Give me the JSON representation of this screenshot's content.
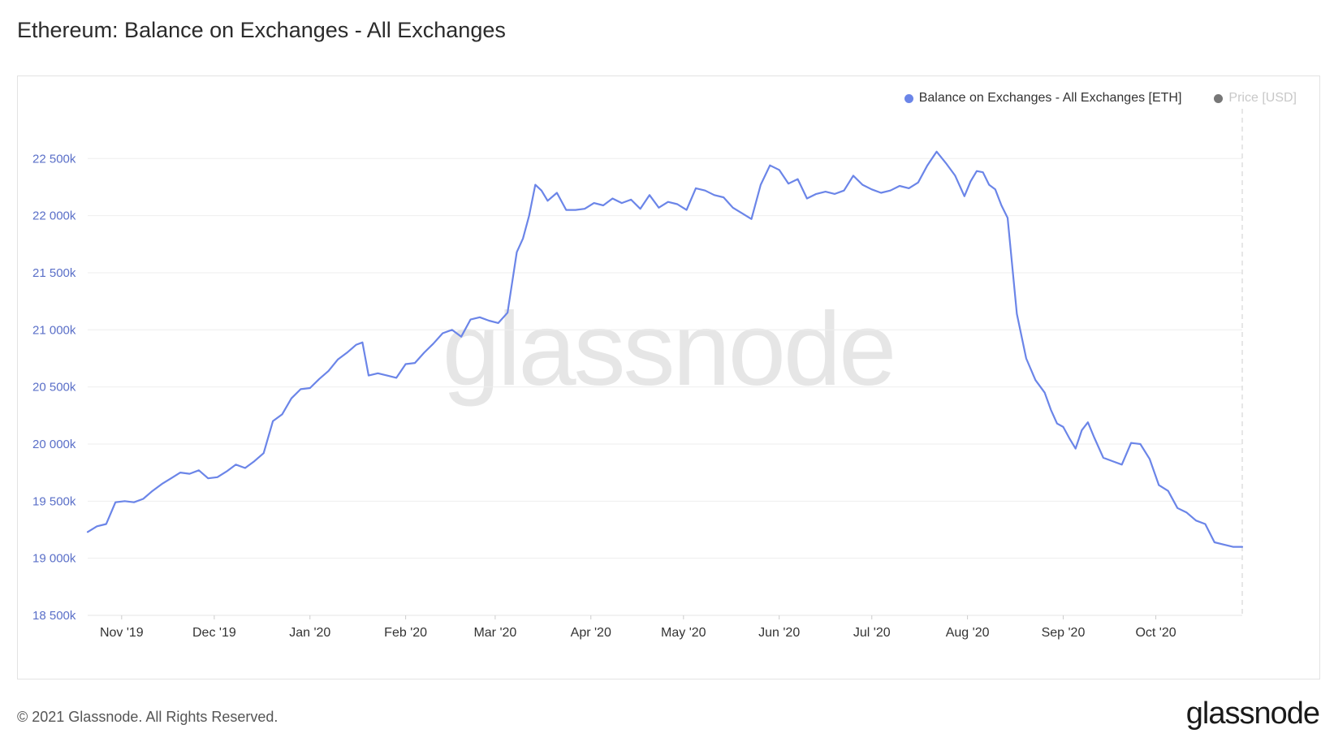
{
  "header": {
    "title": "Ethereum: Balance on Exchanges - All Exchanges"
  },
  "footer": {
    "copyright": "© 2021 Glassnode. All Rights Reserved.",
    "brand": "glassnode"
  },
  "watermark": "glassnode",
  "colors": {
    "series_line": "#6b85e8",
    "price_dot": "#777777",
    "price_label": "#c8c8c8",
    "axis_label": "#5a6fc8",
    "grid": "#eeeeee",
    "watermark": "#e6e6e6"
  },
  "chart_data": {
    "type": "line",
    "legend_placement": "top-right",
    "grid": true,
    "series": [
      {
        "name": "Balance on Exchanges - All Exchanges [ETH]",
        "x": [
          "2019-10-21",
          "2019-10-24",
          "2019-10-27",
          "2019-10-30",
          "2019-11-02",
          "2019-11-05",
          "2019-11-08",
          "2019-11-11",
          "2019-11-14",
          "2019-11-17",
          "2019-11-20",
          "2019-11-23",
          "2019-11-26",
          "2019-11-29",
          "2019-12-02",
          "2019-12-05",
          "2019-12-08",
          "2019-12-11",
          "2019-12-14",
          "2019-12-17",
          "2019-12-20",
          "2019-12-23",
          "2019-12-26",
          "2019-12-29",
          "2020-01-01",
          "2020-01-04",
          "2020-01-07",
          "2020-01-10",
          "2020-01-13",
          "2020-01-16",
          "2020-01-18",
          "2020-01-20",
          "2020-01-23",
          "2020-01-26",
          "2020-01-29",
          "2020-02-01",
          "2020-02-04",
          "2020-02-07",
          "2020-02-10",
          "2020-02-13",
          "2020-02-16",
          "2020-02-19",
          "2020-02-22",
          "2020-02-25",
          "2020-02-28",
          "2020-03-02",
          "2020-03-05",
          "2020-03-08",
          "2020-03-10",
          "2020-03-12",
          "2020-03-14",
          "2020-03-16",
          "2020-03-18",
          "2020-03-21",
          "2020-03-24",
          "2020-03-27",
          "2020-03-30",
          "2020-04-02",
          "2020-04-05",
          "2020-04-08",
          "2020-04-11",
          "2020-04-14",
          "2020-04-17",
          "2020-04-20",
          "2020-04-23",
          "2020-04-26",
          "2020-04-29",
          "2020-05-02",
          "2020-05-05",
          "2020-05-08",
          "2020-05-11",
          "2020-05-14",
          "2020-05-17",
          "2020-05-20",
          "2020-05-23",
          "2020-05-26",
          "2020-05-29",
          "2020-06-01",
          "2020-06-04",
          "2020-06-07",
          "2020-06-10",
          "2020-06-13",
          "2020-06-16",
          "2020-06-19",
          "2020-06-22",
          "2020-06-25",
          "2020-06-28",
          "2020-07-01",
          "2020-07-04",
          "2020-07-07",
          "2020-07-10",
          "2020-07-13",
          "2020-07-16",
          "2020-07-19",
          "2020-07-22",
          "2020-07-25",
          "2020-07-28",
          "2020-07-31",
          "2020-08-02",
          "2020-08-04",
          "2020-08-06",
          "2020-08-08",
          "2020-08-10",
          "2020-08-12",
          "2020-08-14",
          "2020-08-17",
          "2020-08-20",
          "2020-08-23",
          "2020-08-26",
          "2020-08-28",
          "2020-08-30",
          "2020-09-01",
          "2020-09-03",
          "2020-09-05",
          "2020-09-07",
          "2020-09-09",
          "2020-09-11",
          "2020-09-14",
          "2020-09-17",
          "2020-09-20",
          "2020-09-23",
          "2020-09-26",
          "2020-09-29",
          "2020-10-02",
          "2020-10-05",
          "2020-10-08",
          "2020-10-11",
          "2020-10-14",
          "2020-10-17",
          "2020-10-20",
          "2020-10-23",
          "2020-10-26",
          "2020-10-29"
        ],
        "values": [
          19230,
          19280,
          19300,
          19490,
          19500,
          19490,
          19520,
          19590,
          19650,
          19700,
          19750,
          19740,
          19770,
          19700,
          19710,
          19760,
          19820,
          19790,
          19850,
          19920,
          20200,
          20260,
          20400,
          20480,
          20490,
          20570,
          20640,
          20740,
          20800,
          20870,
          20890,
          20600,
          20620,
          20600,
          20580,
          20700,
          20710,
          20800,
          20880,
          20970,
          21000,
          20940,
          21090,
          21110,
          21080,
          21060,
          21150,
          21680,
          21800,
          22000,
          22270,
          22220,
          22130,
          22200,
          22050,
          22050,
          22060,
          22110,
          22090,
          22150,
          22110,
          22140,
          22060,
          22180,
          22070,
          22120,
          22100,
          22050,
          22240,
          22220,
          22180,
          22160,
          22070,
          22020,
          21970,
          22270,
          22440,
          22400,
          22280,
          22320,
          22150,
          22190,
          22210,
          22190,
          22220,
          22350,
          22270,
          22230,
          22200,
          22220,
          22260,
          22240,
          22290,
          22440,
          22560,
          22460,
          22350,
          22170,
          22300,
          22390,
          22380,
          22270,
          22230,
          22090,
          21980,
          21140,
          20750,
          20560,
          20450,
          20300,
          20180,
          20150,
          20050,
          19960,
          20120,
          20190,
          20060,
          19880,
          19850,
          19820,
          20010,
          20000,
          19870,
          19640,
          19590,
          19440,
          19400,
          19330,
          19300,
          19140,
          19120,
          19100,
          19100
        ]
      },
      {
        "name": "Price [USD]",
        "values": []
      }
    ],
    "xlabel": "",
    "ylabel": "",
    "ylim": [
      18500,
      22900
    ],
    "xlim": [
      "2019-10-21",
      "2020-10-29"
    ],
    "y_ticks": [
      18500,
      19000,
      19500,
      20000,
      20500,
      21000,
      21500,
      22000,
      22500
    ],
    "y_tick_labels": [
      "18 500k",
      "19 000k",
      "19 500k",
      "20 000k",
      "20 500k",
      "21 000k",
      "21 500k",
      "22 000k",
      "22 500k"
    ],
    "x_ticks": [
      "2019-11-01",
      "2019-12-01",
      "2020-01-01",
      "2020-02-01",
      "2020-03-01",
      "2020-04-01",
      "2020-05-01",
      "2020-06-01",
      "2020-07-01",
      "2020-08-01",
      "2020-09-01",
      "2020-10-01"
    ],
    "x_tick_labels": [
      "Nov '19",
      "Dec '19",
      "Jan '20",
      "Feb '20",
      "Mar '20",
      "Apr '20",
      "May '20",
      "Jun '20",
      "Jul '20",
      "Aug '20",
      "Sep '20",
      "Oct '20"
    ]
  }
}
